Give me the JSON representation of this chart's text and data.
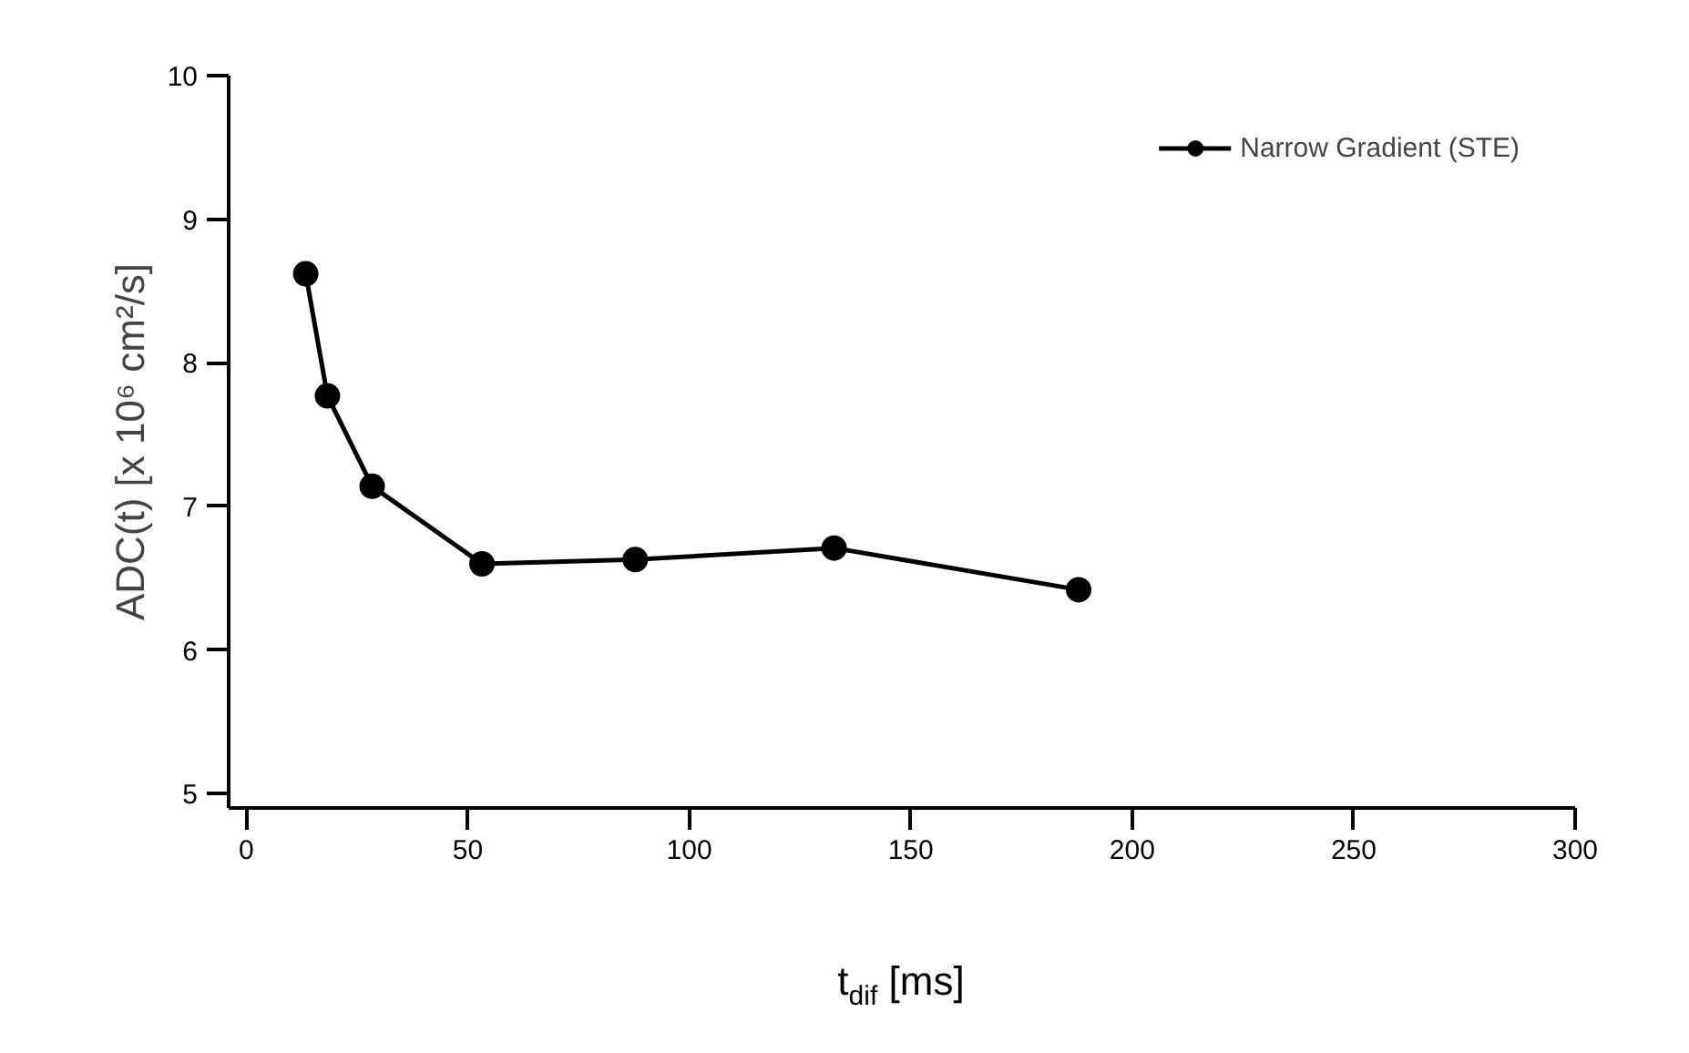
{
  "chart_data": {
    "type": "line",
    "xlabel": "t$_{dif}$ [ms]",
    "ylabel": "ADC(t) [x 10⁶ cm²/s]",
    "x": [
      13.4,
      18.3,
      28.4,
      53.2,
      87.8,
      132.7,
      187.9
    ],
    "series": [
      {
        "name": "Narrow Gradient (STE)",
        "color": "#000000",
        "values": [
          8.62,
          7.77,
          7.14,
          6.6,
          6.63,
          6.71,
          6.42
        ]
      }
    ],
    "xlim": [
      -4,
      300
    ],
    "ylim": [
      4.9,
      10
    ],
    "xticks": [
      0,
      50,
      100,
      150,
      200,
      250,
      300
    ],
    "yticks": [
      5,
      6,
      7,
      8,
      9,
      10
    ],
    "marker": "circle",
    "line_style": "solid",
    "grid": false,
    "legend": "top right"
  }
}
